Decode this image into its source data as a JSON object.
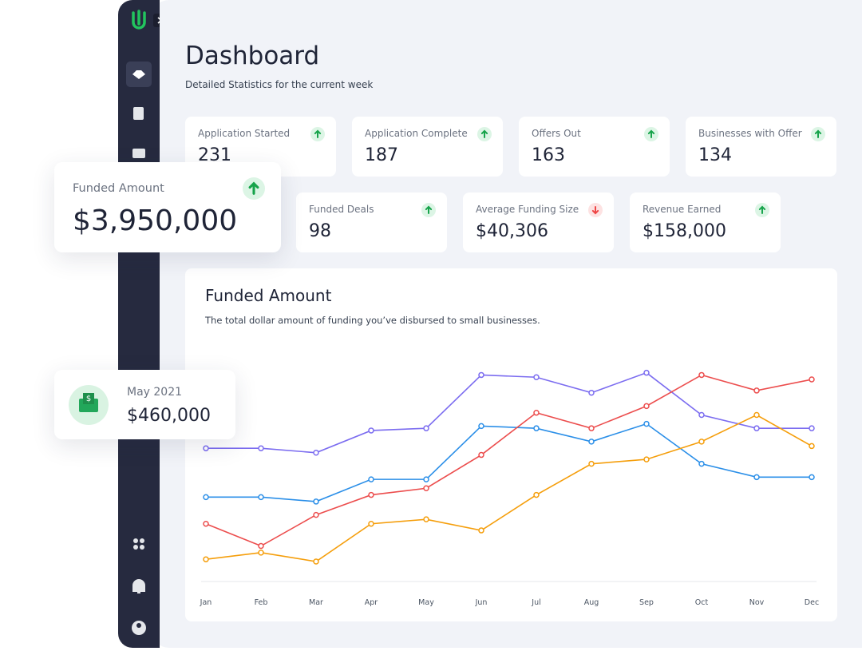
{
  "header": {
    "title": "Dashboard",
    "subtitle": "Detailed Statistics for the current week"
  },
  "stats": [
    {
      "label": "Application Started",
      "value": "231",
      "trend": "up"
    },
    {
      "label": "Application Complete",
      "value": "187",
      "trend": "up"
    },
    {
      "label": "Offers Out",
      "value": "163",
      "trend": "up"
    },
    {
      "label": "Businesses with Offer",
      "value": "134",
      "trend": "up"
    },
    {
      "label": "Funded Deals",
      "value": "98",
      "trend": "up"
    },
    {
      "label": "Average Funding Size",
      "value": "$40,306",
      "trend": "down"
    },
    {
      "label": "Revenue Earned",
      "value": "$158,000",
      "trend": "up"
    }
  ],
  "highlight": {
    "label": "Funded Amount",
    "value": "$3,950,000",
    "trend": "up"
  },
  "month_card": {
    "label": "May 2021",
    "value": "$460,000"
  },
  "chart_data": {
    "type": "line",
    "title": "Funded Amount",
    "subtitle": "The total dollar amount of funding you’ve disbursed to small businesses.",
    "categories": [
      "Jan",
      "Feb",
      "Mar",
      "Apr",
      "May",
      "Jun",
      "Jul",
      "Aug",
      "Sep",
      "Oct",
      "Nov",
      "Dec"
    ],
    "ylim": [
      0,
      100
    ],
    "series": [
      {
        "color": "#7b6cf0",
        "values": [
          60,
          60,
          58,
          68,
          69,
          93,
          92,
          85,
          94,
          75,
          69,
          69
        ]
      },
      {
        "color": "#2b8fe8",
        "values": [
          38,
          38,
          36,
          46,
          46,
          70,
          69,
          63,
          71,
          53,
          47,
          47
        ]
      },
      {
        "color": "#ec4d4d",
        "values": [
          26,
          16,
          30,
          39,
          42,
          57,
          76,
          69,
          79,
          93,
          86,
          91
        ]
      },
      {
        "color": "#f59e0b",
        "values": [
          10,
          13,
          9,
          26,
          28,
          23,
          39,
          53,
          55,
          63,
          75,
          61
        ]
      }
    ]
  }
}
